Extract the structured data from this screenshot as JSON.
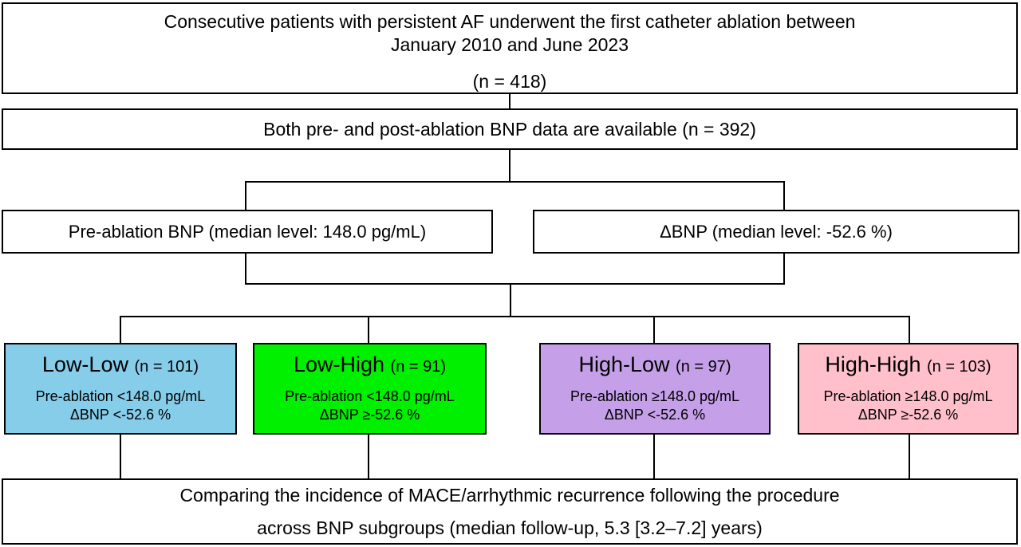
{
  "boxes": {
    "enrollment": {
      "line1": "Consecutive patients with persistent AF underwent the first catheter ablation between",
      "line2": "January 2010 and June 2023",
      "n": "(n = 418)"
    },
    "bnp_available": {
      "text": "Both pre- and post-ablation BNP data are available (n = 392)"
    },
    "pre_ablation": {
      "text": "Pre-ablation BNP (median level: 148.0 pg/mL)"
    },
    "delta_bnp": {
      "text": "ΔBNP (median level: -52.6 %)"
    },
    "subgroups": [
      {
        "title": "Low-Low",
        "n": "(n = 101)",
        "line1": "Pre-ablation <148.0 pg/mL",
        "line2": "ΔBNP <-52.6 %",
        "color": "#86CDEA"
      },
      {
        "title": "Low-High",
        "n": "(n = 91)",
        "line1": "Pre-ablation <148.0 pg/mL",
        "line2": "ΔBNP ≥-52.6 %",
        "color": "#00F000"
      },
      {
        "title": "High-Low",
        "n": "(n = 97)",
        "line1": "Pre-ablation ≥148.0 pg/mL",
        "line2": "ΔBNP <-52.6 %",
        "color": "#C5A0E9"
      },
      {
        "title": "High-High",
        "n": "(n = 103)",
        "line1": "Pre-ablation ≥148.0 pg/mL",
        "line2": "ΔBNP ≥-52.6 %",
        "color": "#FFC0CB"
      }
    ],
    "outcome": {
      "line1": "Comparing the incidence of MACE/arrhythmic recurrence following the procedure",
      "line2": "across BNP subgroups (median follow-up, 5.3 [3.2–7.2] years)"
    }
  },
  "line_color": "#000000"
}
